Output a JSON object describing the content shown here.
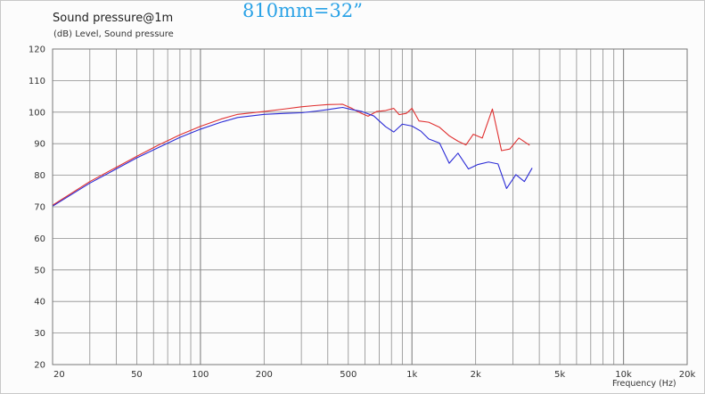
{
  "overlay_title": "810mm=32”",
  "colors": {
    "series_red": "#e03030",
    "series_blue": "#2b2bd6",
    "grid": "#8c8c8c",
    "overlay_title": "#2aa2e6"
  },
  "chart_data": {
    "type": "line",
    "title": "Sound pressure@1m",
    "subtitle": "(dB)  Level, Sound pressure",
    "xlabel": "Frequency  (Hz)",
    "ylabel": "",
    "xscale": "log",
    "xlim": [
      20,
      20000
    ],
    "ylim": [
      20,
      120
    ],
    "grid": true,
    "x_tick_labels": [
      {
        "value": 20,
        "label": "20"
      },
      {
        "value": 50,
        "label": "50"
      },
      {
        "value": 100,
        "label": "100"
      },
      {
        "value": 200,
        "label": "200"
      },
      {
        "value": 500,
        "label": "500"
      },
      {
        "value": 1000,
        "label": "1k"
      },
      {
        "value": 2000,
        "label": "2k"
      },
      {
        "value": 5000,
        "label": "5k"
      },
      {
        "value": 10000,
        "label": "10k"
      },
      {
        "value": 20000,
        "label": "20k"
      }
    ],
    "y_ticks": [
      20,
      30,
      40,
      50,
      60,
      70,
      80,
      90,
      100,
      110,
      120
    ],
    "series": [
      {
        "color": "#e03030",
        "points": [
          [
            20,
            70.5
          ],
          [
            30,
            78
          ],
          [
            40,
            82.5
          ],
          [
            50,
            86
          ],
          [
            63,
            89.5
          ],
          [
            80,
            92.8
          ],
          [
            100,
            95.5
          ],
          [
            125,
            97.8
          ],
          [
            150,
            99.3
          ],
          [
            200,
            100.2
          ],
          [
            250,
            101
          ],
          [
            300,
            101.7
          ],
          [
            350,
            102.1
          ],
          [
            400,
            102.4
          ],
          [
            470,
            102.5
          ],
          [
            520,
            101.2
          ],
          [
            560,
            100
          ],
          [
            620,
            98.7
          ],
          [
            680,
            100.2
          ],
          [
            750,
            100.5
          ],
          [
            820,
            101.2
          ],
          [
            870,
            99.2
          ],
          [
            940,
            99.6
          ],
          [
            1000,
            101.2
          ],
          [
            1080,
            97.2
          ],
          [
            1200,
            96.8
          ],
          [
            1350,
            95.2
          ],
          [
            1500,
            92.5
          ],
          [
            1650,
            90.8
          ],
          [
            1800,
            89.6
          ],
          [
            1950,
            93
          ],
          [
            2150,
            91.8
          ],
          [
            2400,
            101
          ],
          [
            2650,
            87.8
          ],
          [
            2900,
            88.3
          ],
          [
            3200,
            91.8
          ],
          [
            3600,
            89.5
          ]
        ]
      },
      {
        "color": "#2b2bd6",
        "points": [
          [
            20,
            70.2
          ],
          [
            30,
            77.5
          ],
          [
            40,
            82
          ],
          [
            50,
            85.5
          ],
          [
            63,
            88.7
          ],
          [
            80,
            92
          ],
          [
            100,
            94.6
          ],
          [
            125,
            96.8
          ],
          [
            150,
            98.3
          ],
          [
            200,
            99.3
          ],
          [
            250,
            99.6
          ],
          [
            300,
            99.8
          ],
          [
            350,
            100.3
          ],
          [
            400,
            100.8
          ],
          [
            470,
            101.5
          ],
          [
            520,
            100.8
          ],
          [
            580,
            100.2
          ],
          [
            660,
            98.8
          ],
          [
            750,
            95.4
          ],
          [
            820,
            93.7
          ],
          [
            900,
            96.2
          ],
          [
            1000,
            95.6
          ],
          [
            1100,
            94
          ],
          [
            1200,
            91.5
          ],
          [
            1350,
            90.2
          ],
          [
            1500,
            83.8
          ],
          [
            1650,
            87
          ],
          [
            1850,
            82
          ],
          [
            2050,
            83.4
          ],
          [
            2300,
            84.2
          ],
          [
            2550,
            83.6
          ],
          [
            2800,
            75.8
          ],
          [
            3100,
            80.2
          ],
          [
            3400,
            78
          ],
          [
            3700,
            82.3
          ]
        ]
      }
    ]
  }
}
